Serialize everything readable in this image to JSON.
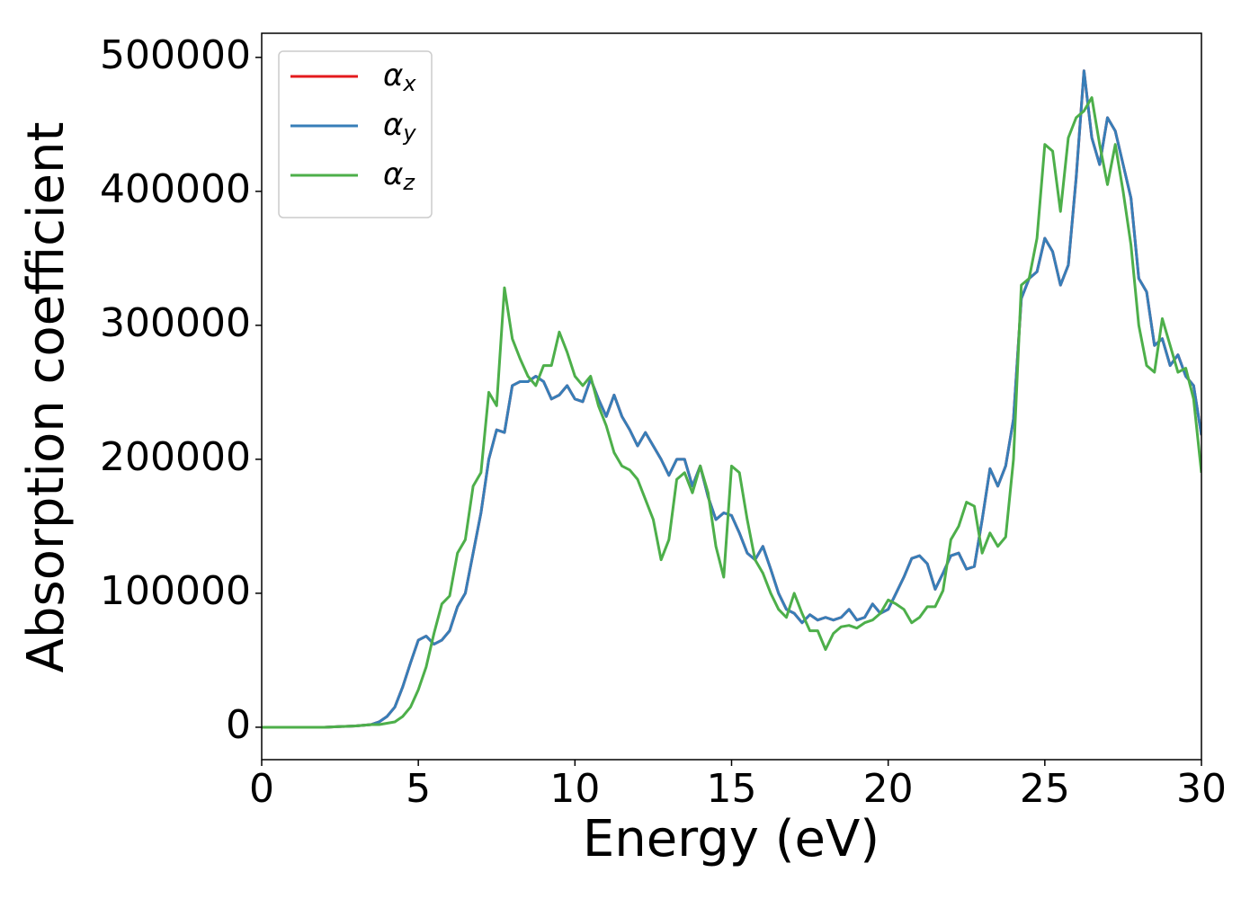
{
  "chart_data": {
    "type": "line",
    "xlabel": "Energy (eV)",
    "ylabel": "Absorption coefficient",
    "x": [
      0,
      1,
      2,
      3,
      3.5,
      3.75,
      4,
      4.25,
      4.5,
      4.75,
      5,
      5.25,
      5.5,
      5.75,
      6,
      6.25,
      6.5,
      6.75,
      7,
      7.25,
      7.5,
      7.75,
      8,
      8.25,
      8.5,
      8.75,
      9,
      9.25,
      9.5,
      9.75,
      10,
      10.25,
      10.5,
      10.75,
      11,
      11.25,
      11.5,
      11.75,
      12,
      12.25,
      12.5,
      12.75,
      13,
      13.25,
      13.5,
      13.75,
      14,
      14.25,
      14.5,
      14.75,
      15,
      15.25,
      15.5,
      15.75,
      16,
      16.25,
      16.5,
      16.75,
      17,
      17.25,
      17.5,
      17.75,
      18,
      18.25,
      18.5,
      18.75,
      19,
      19.25,
      19.5,
      19.75,
      20,
      20.25,
      20.5,
      20.75,
      21,
      21.25,
      21.5,
      21.75,
      22,
      22.25,
      22.5,
      22.75,
      23,
      23.25,
      23.5,
      23.75,
      24,
      24.25,
      24.5,
      24.75,
      25,
      25.25,
      25.5,
      25.75,
      26,
      26.25,
      26.5,
      26.75,
      27,
      27.25,
      27.5,
      27.75,
      28,
      28.25,
      28.5,
      28.75,
      29,
      29.25,
      29.5,
      29.75,
      30
    ],
    "series": [
      {
        "name": "αx",
        "color": "#e41a1c",
        "values": [
          0,
          0,
          0,
          1000,
          2000,
          4000,
          8000,
          15000,
          30000,
          48000,
          65000,
          68000,
          62000,
          65000,
          72000,
          90000,
          100000,
          130000,
          160000,
          200000,
          222000,
          220000,
          255000,
          258000,
          258000,
          262000,
          258000,
          245000,
          248000,
          255000,
          245000,
          243000,
          260000,
          245000,
          232000,
          248000,
          232000,
          222000,
          210000,
          220000,
          210000,
          200000,
          188000,
          200000,
          200000,
          180000,
          195000,
          172000,
          155000,
          160000,
          158000,
          145000,
          130000,
          125000,
          135000,
          118000,
          100000,
          88000,
          85000,
          78000,
          84000,
          80000,
          82000,
          80000,
          82000,
          88000,
          80000,
          82000,
          92000,
          85000,
          88000,
          100000,
          112000,
          126000,
          128000,
          122000,
          103000,
          115000,
          128000,
          130000,
          118000,
          120000,
          155000,
          193000,
          180000,
          195000,
          230000,
          320000,
          335000,
          340000,
          365000,
          355000,
          330000,
          345000,
          410000,
          490000,
          440000,
          420000,
          455000,
          445000,
          420000,
          395000,
          335000,
          325000,
          285000,
          290000,
          270000,
          278000,
          262000,
          255000,
          218000
        ]
      },
      {
        "name": "αy",
        "color": "#377eb8",
        "values": [
          0,
          0,
          0,
          1000,
          2000,
          4000,
          8000,
          15000,
          30000,
          48000,
          65000,
          68000,
          62000,
          65000,
          72000,
          90000,
          100000,
          130000,
          160000,
          200000,
          222000,
          220000,
          255000,
          258000,
          258000,
          262000,
          258000,
          245000,
          248000,
          255000,
          245000,
          243000,
          260000,
          245000,
          232000,
          248000,
          232000,
          222000,
          210000,
          220000,
          210000,
          200000,
          188000,
          200000,
          200000,
          180000,
          195000,
          172000,
          155000,
          160000,
          158000,
          145000,
          130000,
          125000,
          135000,
          118000,
          100000,
          88000,
          85000,
          78000,
          84000,
          80000,
          82000,
          80000,
          82000,
          88000,
          80000,
          82000,
          92000,
          85000,
          88000,
          100000,
          112000,
          126000,
          128000,
          122000,
          103000,
          115000,
          128000,
          130000,
          118000,
          120000,
          155000,
          193000,
          180000,
          195000,
          230000,
          320000,
          335000,
          340000,
          365000,
          355000,
          330000,
          345000,
          410000,
          490000,
          440000,
          420000,
          455000,
          445000,
          420000,
          395000,
          335000,
          325000,
          285000,
          290000,
          270000,
          278000,
          262000,
          255000,
          218000
        ]
      },
      {
        "name": "αz",
        "color": "#4daf4a",
        "values": [
          0,
          0,
          0,
          1000,
          2000,
          2000,
          3000,
          4000,
          8000,
          15000,
          28000,
          45000,
          70000,
          92000,
          98000,
          130000,
          140000,
          180000,
          190000,
          250000,
          240000,
          328000,
          290000,
          275000,
          262000,
          255000,
          270000,
          270000,
          295000,
          280000,
          262000,
          255000,
          262000,
          240000,
          225000,
          205000,
          195000,
          192000,
          185000,
          170000,
          155000,
          125000,
          140000,
          185000,
          190000,
          175000,
          195000,
          175000,
          135000,
          112000,
          195000,
          190000,
          155000,
          125000,
          115000,
          100000,
          88000,
          82000,
          100000,
          85000,
          72000,
          72000,
          58000,
          70000,
          75000,
          76000,
          74000,
          78000,
          80000,
          85000,
          95000,
          92000,
          88000,
          78000,
          82000,
          90000,
          90000,
          102000,
          140000,
          150000,
          168000,
          165000,
          130000,
          145000,
          135000,
          142000,
          200000,
          330000,
          335000,
          365000,
          435000,
          430000,
          385000,
          440000,
          455000,
          460000,
          470000,
          435000,
          405000,
          435000,
          400000,
          360000,
          300000,
          270000,
          265000,
          305000,
          285000,
          265000,
          268000,
          245000,
          190000
        ]
      }
    ],
    "xlim": [
      0,
      30
    ],
    "xticks": [
      0,
      5,
      10,
      15,
      20,
      25,
      30
    ],
    "ylim": [
      -24200,
      518000
    ],
    "yticks": [
      0,
      100000,
      200000,
      300000,
      400000,
      500000
    ],
    "legend": "upper left"
  }
}
